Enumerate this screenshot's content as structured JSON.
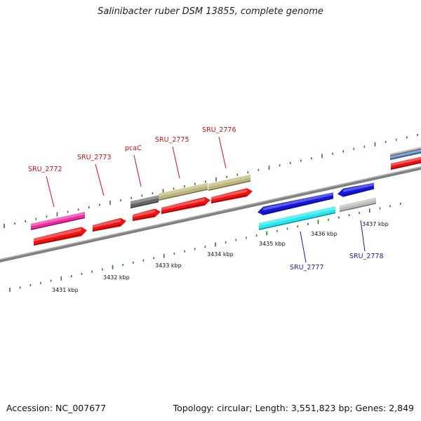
{
  "header": {
    "title": "Salinibacter ruber DSM 13855, complete genome"
  },
  "footer": {
    "accession": "Accession: NC_007677",
    "topology": "Topology: circular; Length: 3,551,823 bp; Genes: 2,849"
  },
  "colors": {
    "backbone": "#808080",
    "tick": "#2a7a2a",
    "label_forward": "#cc1111",
    "label_reverse": "#1c1caa",
    "cds_red": "#ee1111",
    "magenta": "#ee2aa0",
    "grey_dark": "#666666",
    "khaki": "#bdb67a",
    "blue": "#1515dd",
    "cyan": "#22e8f0",
    "light_grey": "#bbbbbb",
    "steel": "#5a8cc8"
  },
  "kbp_labels": [
    "3431 kbp",
    "3432 kbp",
    "3433 kbp",
    "3434 kbp",
    "3435 kbp",
    "3436 kbp",
    "3437 kbp"
  ],
  "gene_labels": {
    "forward": [
      "SRU_2772",
      "SRU_2773",
      "pcaC",
      "SRU_2775",
      "SRU_2776"
    ],
    "reverse": [
      "SRU_2777",
      "SRU_2778"
    ]
  }
}
